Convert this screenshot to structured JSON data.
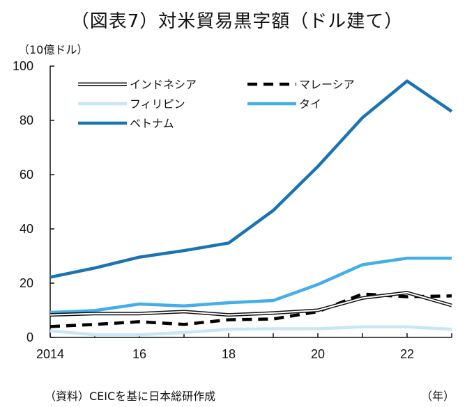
{
  "title": "（図表7）対米貿易黒字額（ドル建て）",
  "unit_label": "（10億ドル）",
  "source_note": "（資料）CEICを基に日本総研作成",
  "x_unit_label": "（年）",
  "chart_data": {
    "type": "line",
    "title": "（図表7）対米貿易黒字額（ドル建て）",
    "ylabel": "（10億ドル）",
    "xlabel": "（年）",
    "x": [
      2014,
      2015,
      2016,
      2017,
      2018,
      2019,
      2020,
      2021,
      2022,
      2023
    ],
    "xlim": [
      2014,
      2023
    ],
    "ylim": [
      0,
      100
    ],
    "x_ticks": [
      2014,
      2016,
      2018,
      2020,
      2022
    ],
    "x_tick_labels": [
      "2014",
      "16",
      "18",
      "20",
      "22"
    ],
    "y_ticks": [
      0,
      20,
      40,
      60,
      80,
      100
    ],
    "grid": false,
    "legend_position": "top-left",
    "series": [
      {
        "name": "インドネシア",
        "values": [
          8.3,
          8.8,
          8.8,
          9.5,
          8.3,
          9.0,
          10.0,
          14.5,
          16.5,
          11.8
        ],
        "color": "#111111",
        "style": "double"
      },
      {
        "name": "マレーシア",
        "values": [
          4.0,
          4.8,
          5.8,
          4.8,
          6.5,
          6.8,
          9.5,
          16.0,
          15.0,
          15.3
        ],
        "color": "#000000",
        "style": "dashed"
      },
      {
        "name": "フィリピン",
        "values": [
          2.4,
          1.0,
          1.0,
          1.8,
          3.0,
          3.2,
          3.2,
          3.9,
          3.9,
          3.0
        ],
        "color": "#c8e6f6",
        "style": "solid"
      },
      {
        "name": "タイ",
        "values": [
          9.2,
          9.9,
          12.3,
          11.6,
          12.8,
          13.6,
          19.5,
          26.8,
          29.2,
          29.2
        ],
        "color": "#45aee8",
        "style": "solid"
      },
      {
        "name": "ベトナム",
        "values": [
          22.2,
          25.6,
          29.6,
          32.0,
          34.8,
          46.8,
          63.0,
          81.0,
          94.5,
          83.3
        ],
        "color": "#1a73b3",
        "style": "solid"
      }
    ]
  }
}
